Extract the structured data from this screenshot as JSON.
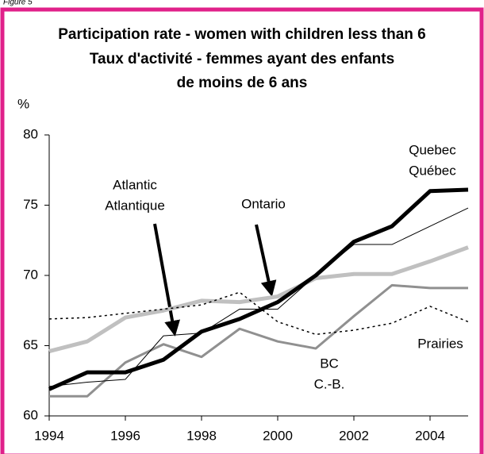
{
  "chart_data": {
    "type": "line",
    "figure_label": "Figure 5",
    "title": [
      "Participation rate - women with children less than 6",
      "Taux d'activité - femmes ayant des enfants",
      "de moins de 6 ans"
    ],
    "y_label": "%",
    "x": [
      1994,
      1995,
      1996,
      1997,
      1998,
      1999,
      2000,
      2001,
      2002,
      2003,
      2004,
      2005
    ],
    "xlim": [
      1994,
      2005
    ],
    "xticks": [
      1994,
      1996,
      1998,
      2000,
      2002,
      2004
    ],
    "ylim": [
      60,
      80
    ],
    "yticks": [
      60,
      65,
      70,
      75,
      80
    ],
    "series": [
      {
        "name": "Quebec",
        "alt_name": "Québec",
        "color": "#000000",
        "values": [
          61.9,
          63.1,
          63.1,
          64.0,
          66.0,
          66.9,
          68.1,
          70.0,
          72.4,
          73.5,
          76.0,
          76.1
        ]
      },
      {
        "name": "Ontario",
        "color": "#000000",
        "values": [
          62.1,
          62.4,
          62.6,
          65.7,
          65.9,
          67.6,
          67.6,
          70.0,
          72.2,
          72.2,
          73.5,
          74.8
        ]
      },
      {
        "name": "Prairies",
        "color": "#000000",
        "values": [
          66.9,
          67.0,
          67.3,
          67.6,
          67.9,
          68.8,
          66.7,
          65.8,
          66.1,
          66.6,
          67.8,
          66.7
        ]
      },
      {
        "name": "Atlantic",
        "alt_name": "Atlantique",
        "color": "#c0c0c0",
        "values": [
          64.6,
          65.3,
          67.0,
          67.5,
          68.2,
          68.1,
          68.5,
          69.8,
          70.1,
          70.1,
          71.0,
          72.0
        ]
      },
      {
        "name": "BC",
        "alt_name": "C.-B.",
        "color": "#909090",
        "values": [
          61.4,
          61.4,
          63.8,
          65.1,
          64.2,
          66.2,
          65.3,
          64.8,
          67.1,
          69.3,
          69.1,
          69.1
        ]
      }
    ]
  }
}
